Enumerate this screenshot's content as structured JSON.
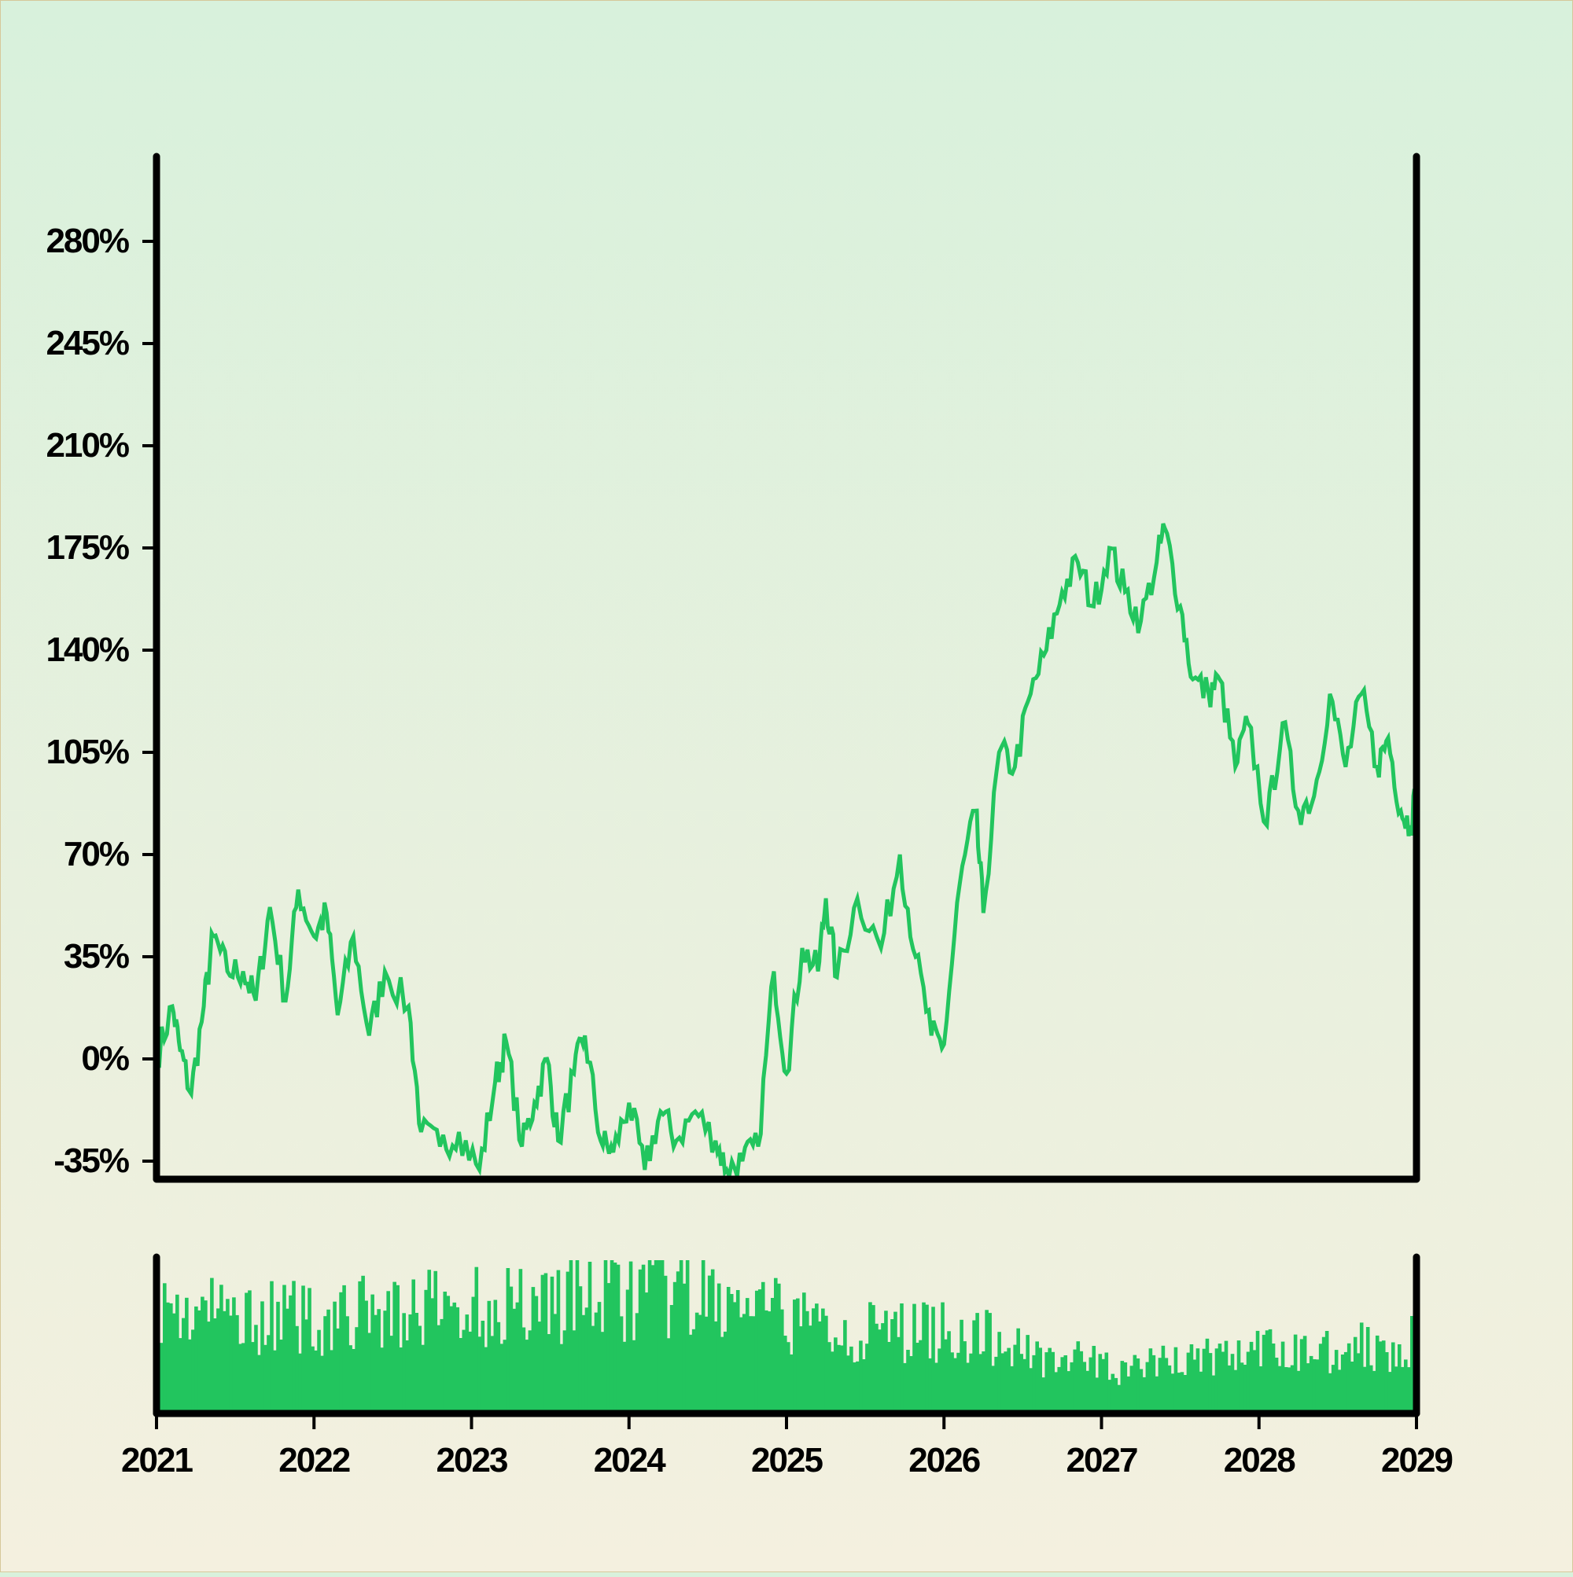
{
  "chart_data": [
    {
      "type": "line",
      "title": "",
      "xlabel": "",
      "ylabel": "",
      "ylim": [
        -40,
        315
      ],
      "yticks": [
        -35,
        0,
        35,
        70,
        105,
        140,
        175,
        210,
        245,
        280
      ],
      "ytick_labels": [
        "-35%",
        "0%",
        "35%",
        "70%",
        "105%",
        "140%",
        "175%",
        "210%",
        "245%",
        "280%"
      ],
      "xlim": [
        2021,
        2029
      ],
      "grid": false,
      "series": [
        {
          "color": "#22c55e",
          "points": [
            [
              2021.0,
              0
            ],
            [
              2021.1,
              18
            ],
            [
              2021.15,
              3
            ],
            [
              2021.22,
              -12
            ],
            [
              2021.3,
              18
            ],
            [
              2021.36,
              42
            ],
            [
              2021.45,
              30
            ],
            [
              2021.55,
              30
            ],
            [
              2021.63,
              20
            ],
            [
              2021.72,
              52
            ],
            [
              2021.82,
              20
            ],
            [
              2021.9,
              58
            ],
            [
              2022.0,
              42
            ],
            [
              2022.08,
              50
            ],
            [
              2022.15,
              15
            ],
            [
              2022.25,
              42
            ],
            [
              2022.35,
              8
            ],
            [
              2022.45,
              30
            ],
            [
              2022.6,
              18
            ],
            [
              2022.68,
              -25
            ],
            [
              2022.8,
              -30
            ],
            [
              2022.92,
              -25
            ],
            [
              2023.05,
              -38
            ],
            [
              2023.15,
              -8
            ],
            [
              2023.22,
              6
            ],
            [
              2023.32,
              -30
            ],
            [
              2023.4,
              -15
            ],
            [
              2023.48,
              0
            ],
            [
              2023.55,
              -28
            ],
            [
              2023.65,
              -5
            ],
            [
              2023.72,
              8
            ],
            [
              2023.82,
              -28
            ],
            [
              2023.9,
              -32
            ],
            [
              2024.0,
              -15
            ],
            [
              2024.1,
              -38
            ],
            [
              2024.2,
              -18
            ],
            [
              2024.3,
              -28
            ],
            [
              2024.42,
              -18
            ],
            [
              2024.55,
              -28
            ],
            [
              2024.62,
              -38
            ],
            [
              2024.72,
              -35
            ],
            [
              2024.82,
              -30
            ],
            [
              2024.92,
              30
            ],
            [
              2025.0,
              -5
            ],
            [
              2025.1,
              38
            ],
            [
              2025.2,
              30
            ],
            [
              2025.25,
              55
            ],
            [
              2025.32,
              28
            ],
            [
              2025.45,
              55
            ],
            [
              2025.6,
              38
            ],
            [
              2025.72,
              70
            ],
            [
              2025.82,
              35
            ],
            [
              2025.92,
              8
            ],
            [
              2026.0,
              5
            ],
            [
              2026.1,
              60
            ],
            [
              2026.2,
              85
            ],
            [
              2026.25,
              50
            ],
            [
              2026.35,
              105
            ],
            [
              2026.45,
              100
            ],
            [
              2026.55,
              125
            ],
            [
              2026.65,
              140
            ],
            [
              2026.75,
              160
            ],
            [
              2026.85,
              170
            ],
            [
              2026.95,
              155
            ],
            [
              2027.05,
              175
            ],
            [
              2027.15,
              160
            ],
            [
              2027.25,
              150
            ],
            [
              2027.35,
              170
            ],
            [
              2027.4,
              182
            ],
            [
              2027.5,
              155
            ],
            [
              2027.58,
              130
            ],
            [
              2027.68,
              125
            ],
            [
              2027.75,
              130
            ],
            [
              2027.85,
              100
            ],
            [
              2027.93,
              115
            ],
            [
              2028.05,
              80
            ],
            [
              2028.15,
              115
            ],
            [
              2028.25,
              85
            ],
            [
              2028.35,
              90
            ],
            [
              2028.45,
              125
            ],
            [
              2028.55,
              100
            ],
            [
              2028.65,
              125
            ],
            [
              2028.75,
              100
            ],
            [
              2028.82,
              110
            ],
            [
              2028.9,
              85
            ],
            [
              2028.96,
              80
            ],
            [
              2029.0,
              92
            ]
          ]
        }
      ]
    },
    {
      "type": "bar",
      "title": "",
      "xlabel": "",
      "ylabel": "",
      "xlim": [
        2021,
        2029
      ],
      "x_tick_labels": [
        "2021",
        "2022",
        "2023",
        "2024",
        "2025",
        "2026",
        "2027",
        "2028",
        "2029"
      ],
      "ylim": [
        0,
        1
      ],
      "color": "#22c55e",
      "envelope": [
        [
          2021.0,
          0.72
        ],
        [
          2021.5,
          0.68
        ],
        [
          2022.0,
          0.65
        ],
        [
          2022.5,
          0.7
        ],
        [
          2023.0,
          0.73
        ],
        [
          2023.5,
          0.8
        ],
        [
          2024.0,
          0.82
        ],
        [
          2024.5,
          0.78
        ],
        [
          2025.0,
          0.65
        ],
        [
          2025.5,
          0.55
        ],
        [
          2026.0,
          0.58
        ],
        [
          2026.5,
          0.45
        ],
        [
          2026.9,
          0.35
        ],
        [
          2027.2,
          0.3
        ],
        [
          2027.5,
          0.38
        ],
        [
          2028.0,
          0.42
        ],
        [
          2028.5,
          0.45
        ],
        [
          2029.0,
          0.5
        ]
      ]
    }
  ]
}
